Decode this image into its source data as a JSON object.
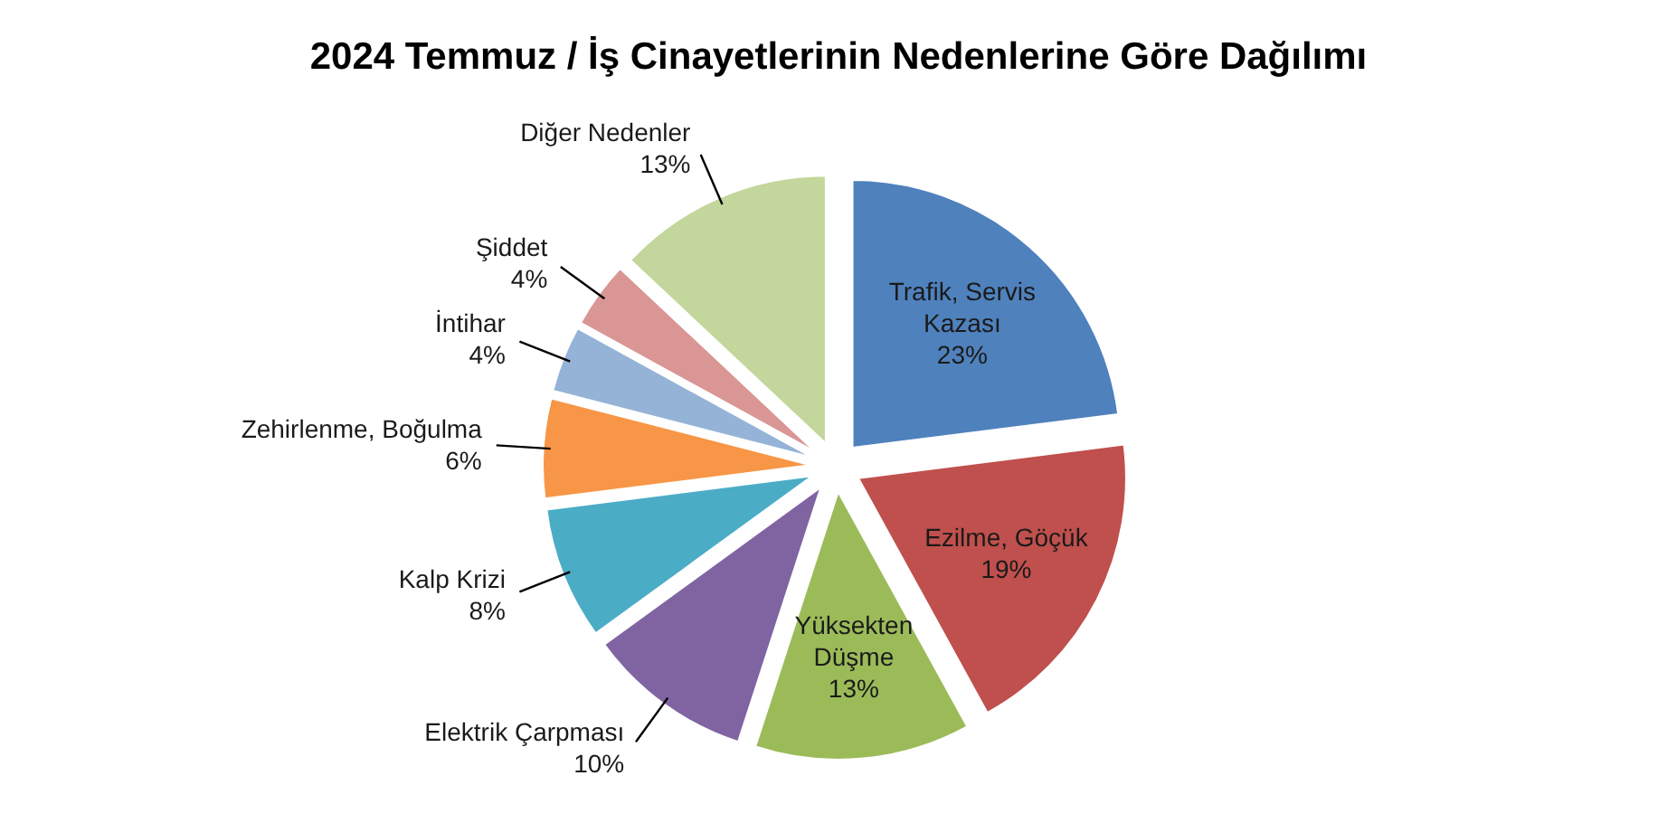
{
  "chart_data": {
    "type": "pie",
    "title": "2024 Temmuz / İş Cinayetlerinin Nedenlerine Göre Dağılımı",
    "categories": [
      "Trafik, Servis Kazası",
      "Ezilme, Göçük",
      "Yüksekten Düşme",
      "Elektrik Çarpması",
      "Kalp Krizi",
      "Zehirlenme, Boğulma",
      "İntihar",
      "Şiddet",
      "Diğer Nedenler"
    ],
    "values": [
      23,
      19,
      13,
      10,
      8,
      6,
      4,
      4,
      13
    ],
    "colors": [
      "#4f81bd",
      "#c0504d",
      "#9bbb59",
      "#8064a2",
      "#4bacc6",
      "#f79646",
      "#95b3d7",
      "#d99694",
      "#c3d69b"
    ],
    "value_labels": [
      "23%",
      "19%",
      "13%",
      "10%",
      "8%",
      "6%",
      "4%",
      "4%",
      "13%"
    ]
  }
}
